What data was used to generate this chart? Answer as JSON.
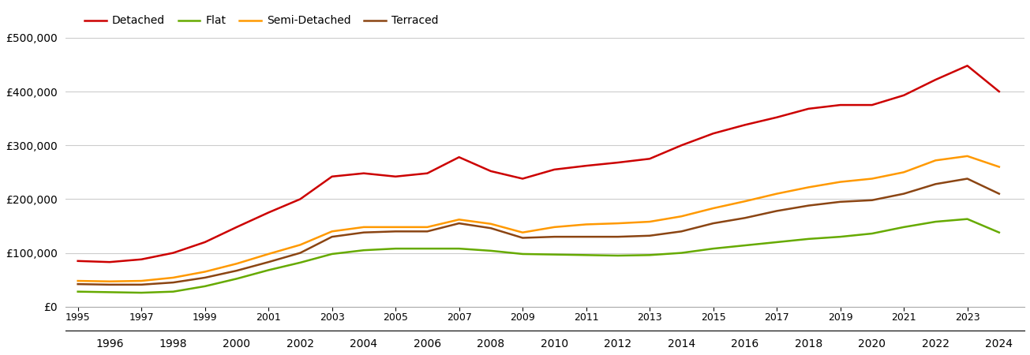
{
  "series_order": [
    "Detached",
    "Flat",
    "Semi-Detached",
    "Terraced"
  ],
  "colors": {
    "Detached": "#cc0000",
    "Flat": "#66aa00",
    "Semi-Detached": "#ff9900",
    "Terraced": "#8B4513"
  },
  "years": [
    1995,
    1996,
    1997,
    1998,
    1999,
    2000,
    2001,
    2002,
    2003,
    2004,
    2005,
    2006,
    2007,
    2008,
    2009,
    2010,
    2011,
    2012,
    2013,
    2014,
    2015,
    2016,
    2017,
    2018,
    2019,
    2020,
    2021,
    2022,
    2023,
    2024
  ],
  "values": {
    "Detached": [
      85000,
      83000,
      88000,
      100000,
      120000,
      148000,
      175000,
      200000,
      242000,
      248000,
      242000,
      248000,
      278000,
      252000,
      238000,
      255000,
      262000,
      268000,
      275000,
      300000,
      322000,
      338000,
      352000,
      368000,
      375000,
      375000,
      393000,
      422000,
      448000,
      400000
    ],
    "Flat": [
      28000,
      27000,
      26000,
      28000,
      38000,
      52000,
      68000,
      82000,
      98000,
      105000,
      108000,
      108000,
      108000,
      104000,
      98000,
      97000,
      96000,
      95000,
      96000,
      100000,
      108000,
      114000,
      120000,
      126000,
      130000,
      136000,
      148000,
      158000,
      163000,
      138000
    ],
    "Semi-Detached": [
      48000,
      47000,
      48000,
      54000,
      65000,
      80000,
      98000,
      115000,
      140000,
      148000,
      148000,
      148000,
      162000,
      154000,
      138000,
      148000,
      153000,
      155000,
      158000,
      168000,
      183000,
      196000,
      210000,
      222000,
      232000,
      238000,
      250000,
      272000,
      280000,
      260000
    ],
    "Terraced": [
      42000,
      41000,
      41000,
      45000,
      54000,
      67000,
      83000,
      100000,
      130000,
      138000,
      140000,
      140000,
      155000,
      146000,
      128000,
      130000,
      130000,
      130000,
      132000,
      140000,
      155000,
      165000,
      178000,
      188000,
      195000,
      198000,
      210000,
      228000,
      238000,
      210000
    ]
  },
  "ylim": [
    0,
    560000
  ],
  "yticks": [
    0,
    100000,
    200000,
    300000,
    400000,
    500000
  ],
  "xlim": [
    1994.6,
    2024.8
  ],
  "odd_years": [
    1995,
    1997,
    1999,
    2001,
    2003,
    2005,
    2007,
    2009,
    2011,
    2013,
    2015,
    2017,
    2019,
    2021,
    2023
  ],
  "even_years": [
    1996,
    1998,
    2000,
    2002,
    2004,
    2006,
    2008,
    2010,
    2012,
    2014,
    2016,
    2018,
    2020,
    2022,
    2024
  ],
  "background_color": "#ffffff",
  "grid_color": "#cccccc",
  "line_width": 1.8
}
